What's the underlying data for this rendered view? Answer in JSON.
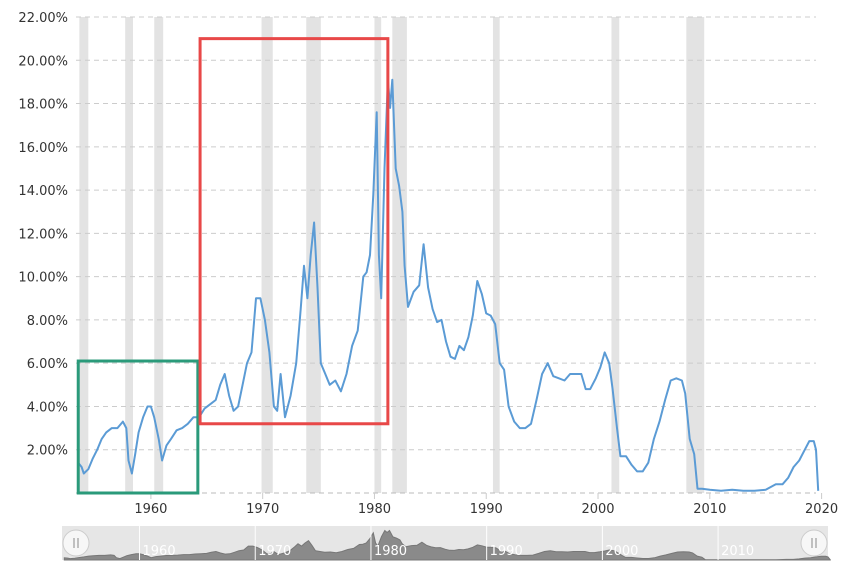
{
  "chart_data": {
    "type": "line",
    "title": "",
    "xlabel": "",
    "ylabel": "",
    "xlim": [
      1953.3,
      2019.5
    ],
    "ylim": [
      0,
      22
    ],
    "y_ticks": [
      2,
      4,
      6,
      8,
      10,
      12,
      14,
      16,
      18,
      20,
      22
    ],
    "y_tick_labels": [
      "2.00%",
      "4.00%",
      "6.00%",
      "8.00%",
      "10.00%",
      "12.00%",
      "14.00%",
      "16.00%",
      "18.00%",
      "20.00%",
      "22.00%"
    ],
    "x_ticks": [
      1960,
      1970,
      1980,
      1990,
      2000,
      2010,
      2020
    ],
    "x_tick_labels": [
      "1960",
      "1970",
      "1980",
      "1990",
      "2000",
      "2010",
      "2020"
    ],
    "navigator_tick_labels": [
      "1960",
      "1970",
      "1980",
      "1990",
      "2000",
      "2010"
    ],
    "grid": true,
    "line_color": "#5b9bd5",
    "recession_color": "#e3e3e3",
    "recessions": [
      [
        1953.6,
        1954.4
      ],
      [
        1957.7,
        1958.4
      ],
      [
        1960.3,
        1961.1
      ],
      [
        1969.9,
        1970.9
      ],
      [
        1973.9,
        1975.2
      ],
      [
        1980.0,
        1980.6
      ],
      [
        1981.6,
        1982.9
      ],
      [
        1990.6,
        1991.2
      ],
      [
        2001.2,
        2001.9
      ],
      [
        2007.9,
        2009.5
      ]
    ],
    "highlights": [
      {
        "x_range": [
          1953.5,
          1964.2
        ],
        "y_range": [
          0,
          6.1
        ],
        "color": "#2a9a7a"
      },
      {
        "x_range": [
          1964.4,
          1981.2
        ],
        "y_range": [
          3.2,
          21.0
        ],
        "color": "#e84848"
      }
    ],
    "series": [
      {
        "values": [
          [
            1953.5,
            1.4
          ],
          [
            1953.8,
            1.2
          ],
          [
            1954.0,
            0.9
          ],
          [
            1954.4,
            1.1
          ],
          [
            1954.8,
            1.6
          ],
          [
            1955.2,
            2.0
          ],
          [
            1955.6,
            2.5
          ],
          [
            1956.0,
            2.8
          ],
          [
            1956.5,
            3.0
          ],
          [
            1957.0,
            3.0
          ],
          [
            1957.5,
            3.3
          ],
          [
            1957.8,
            3.0
          ],
          [
            1958.0,
            1.5
          ],
          [
            1958.3,
            0.9
          ],
          [
            1958.6,
            1.8
          ],
          [
            1958.9,
            2.8
          ],
          [
            1959.3,
            3.5
          ],
          [
            1959.7,
            4.0
          ],
          [
            1960.0,
            4.0
          ],
          [
            1960.3,
            3.5
          ],
          [
            1960.7,
            2.5
          ],
          [
            1961.0,
            1.5
          ],
          [
            1961.4,
            2.2
          ],
          [
            1961.8,
            2.5
          ],
          [
            1962.3,
            2.9
          ],
          [
            1962.8,
            3.0
          ],
          [
            1963.3,
            3.2
          ],
          [
            1963.8,
            3.5
          ],
          [
            1964.3,
            3.5
          ],
          [
            1964.8,
            3.9
          ],
          [
            1965.3,
            4.1
          ],
          [
            1965.8,
            4.3
          ],
          [
            1966.2,
            5.0
          ],
          [
            1966.6,
            5.5
          ],
          [
            1967.0,
            4.5
          ],
          [
            1967.4,
            3.8
          ],
          [
            1967.8,
            4.0
          ],
          [
            1968.2,
            5.0
          ],
          [
            1968.6,
            6.0
          ],
          [
            1969.0,
            6.5
          ],
          [
            1969.4,
            9.0
          ],
          [
            1969.8,
            9.0
          ],
          [
            1970.2,
            8.0
          ],
          [
            1970.6,
            6.5
          ],
          [
            1971.0,
            4.0
          ],
          [
            1971.3,
            3.8
          ],
          [
            1971.6,
            5.5
          ],
          [
            1972.0,
            3.5
          ],
          [
            1972.5,
            4.5
          ],
          [
            1973.0,
            6.0
          ],
          [
            1973.4,
            8.5
          ],
          [
            1973.7,
            10.5
          ],
          [
            1974.0,
            9.0
          ],
          [
            1974.3,
            11.0
          ],
          [
            1974.6,
            12.5
          ],
          [
            1974.9,
            9.5
          ],
          [
            1975.2,
            6.0
          ],
          [
            1975.6,
            5.5
          ],
          [
            1976.0,
            5.0
          ],
          [
            1976.5,
            5.2
          ],
          [
            1977.0,
            4.7
          ],
          [
            1977.5,
            5.5
          ],
          [
            1978.0,
            6.8
          ],
          [
            1978.5,
            7.5
          ],
          [
            1979.0,
            10.0
          ],
          [
            1979.3,
            10.2
          ],
          [
            1979.6,
            11.0
          ],
          [
            1979.9,
            13.8
          ],
          [
            1980.2,
            17.6
          ],
          [
            1980.4,
            11.0
          ],
          [
            1980.6,
            9.0
          ],
          [
            1980.9,
            15.0
          ],
          [
            1981.2,
            19.1
          ],
          [
            1981.4,
            17.8
          ],
          [
            1981.6,
            19.1
          ],
          [
            1981.9,
            15.0
          ],
          [
            1982.2,
            14.2
          ],
          [
            1982.5,
            13.0
          ],
          [
            1982.7,
            10.5
          ],
          [
            1983.0,
            8.6
          ],
          [
            1983.5,
            9.3
          ],
          [
            1984.0,
            9.6
          ],
          [
            1984.4,
            11.5
          ],
          [
            1984.8,
            9.5
          ],
          [
            1985.2,
            8.5
          ],
          [
            1985.6,
            7.9
          ],
          [
            1986.0,
            8.0
          ],
          [
            1986.4,
            7.0
          ],
          [
            1986.8,
            6.3
          ],
          [
            1987.2,
            6.2
          ],
          [
            1987.6,
            6.8
          ],
          [
            1988.0,
            6.6
          ],
          [
            1988.4,
            7.2
          ],
          [
            1988.8,
            8.2
          ],
          [
            1989.2,
            9.8
          ],
          [
            1989.6,
            9.2
          ],
          [
            1990.0,
            8.3
          ],
          [
            1990.4,
            8.2
          ],
          [
            1990.8,
            7.8
          ],
          [
            1991.2,
            6.0
          ],
          [
            1991.6,
            5.7
          ],
          [
            1992.0,
            4.0
          ],
          [
            1992.5,
            3.3
          ],
          [
            1993.0,
            3.0
          ],
          [
            1993.5,
            3.0
          ],
          [
            1994.0,
            3.2
          ],
          [
            1994.5,
            4.3
          ],
          [
            1995.0,
            5.5
          ],
          [
            1995.5,
            6.0
          ],
          [
            1996.0,
            5.4
          ],
          [
            1996.5,
            5.3
          ],
          [
            1997.0,
            5.2
          ],
          [
            1997.5,
            5.5
          ],
          [
            1998.0,
            5.5
          ],
          [
            1998.5,
            5.5
          ],
          [
            1998.9,
            4.8
          ],
          [
            1999.3,
            4.8
          ],
          [
            1999.8,
            5.3
          ],
          [
            2000.2,
            5.8
          ],
          [
            2000.6,
            6.5
          ],
          [
            2001.0,
            6.0
          ],
          [
            2001.3,
            4.8
          ],
          [
            2001.7,
            3.0
          ],
          [
            2002.0,
            1.7
          ],
          [
            2002.5,
            1.7
          ],
          [
            2003.0,
            1.3
          ],
          [
            2003.5,
            1.0
          ],
          [
            2004.0,
            1.0
          ],
          [
            2004.5,
            1.4
          ],
          [
            2005.0,
            2.5
          ],
          [
            2005.5,
            3.3
          ],
          [
            2006.0,
            4.3
          ],
          [
            2006.5,
            5.2
          ],
          [
            2007.0,
            5.3
          ],
          [
            2007.5,
            5.2
          ],
          [
            2007.8,
            4.6
          ],
          [
            2008.2,
            2.5
          ],
          [
            2008.6,
            1.8
          ],
          [
            2008.9,
            0.2
          ],
          [
            2009.3,
            0.2
          ],
          [
            2010.0,
            0.15
          ],
          [
            2011.0,
            0.1
          ],
          [
            2012.0,
            0.15
          ],
          [
            2013.0,
            0.1
          ],
          [
            2014.0,
            0.1
          ],
          [
            2015.0,
            0.15
          ],
          [
            2015.9,
            0.4
          ],
          [
            2016.5,
            0.4
          ],
          [
            2017.0,
            0.7
          ],
          [
            2017.5,
            1.2
          ],
          [
            2018.0,
            1.5
          ],
          [
            2018.5,
            2.0
          ],
          [
            2018.9,
            2.4
          ],
          [
            2019.3,
            2.4
          ],
          [
            2019.5,
            2.0
          ],
          [
            2019.7,
            0.1
          ]
        ]
      }
    ],
    "navigator": {
      "window": [
        1953.3,
        2019.5
      ]
    }
  }
}
